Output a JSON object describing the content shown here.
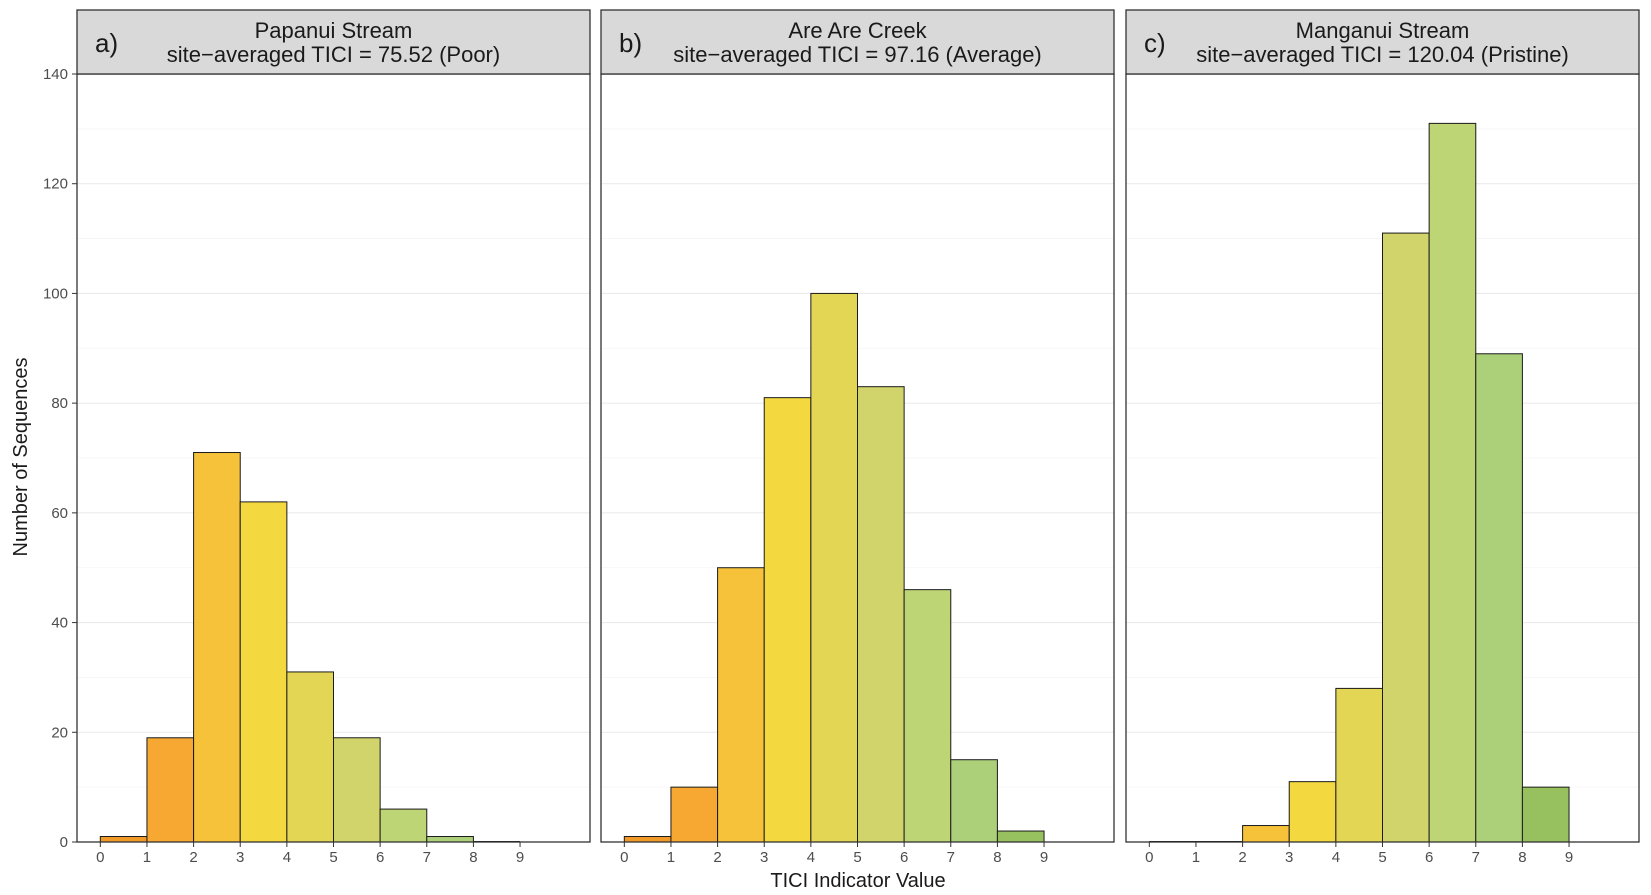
{
  "chart_data": {
    "type": "bar",
    "xlabel": "TICI Indicator Value",
    "ylabel": "Number of Sequences",
    "xlim": [
      -0.5,
      10.5
    ],
    "ylim": [
      0,
      140
    ],
    "x_ticks": [
      "0",
      "1",
      "2",
      "3",
      "4",
      "5",
      "6",
      "7",
      "8",
      "9"
    ],
    "y_ticks": [
      "0",
      "20",
      "40",
      "60",
      "80",
      "100",
      "120",
      "140"
    ],
    "bin_edges": [
      0,
      1,
      2,
      3,
      4,
      5,
      6,
      7,
      8,
      9
    ],
    "bin_colors": [
      "#f19a28",
      "#f6a833",
      "#f5c23a",
      "#f3d83f",
      "#e3d654",
      "#d1d46b",
      "#bed576",
      "#acd07a",
      "#97c15f",
      "#7ea94a"
    ],
    "panels": [
      {
        "letter": "a)",
        "site": "Papanui Stream",
        "subtitle": "site−averaged TICI = 75.52 (Poor)",
        "values": [
          1,
          19,
          71,
          62,
          31,
          19,
          6,
          1,
          0
        ]
      },
      {
        "letter": "b)",
        "site": "Are Are Creek",
        "subtitle": "site−averaged TICI = 97.16 (Average)",
        "values": [
          1,
          10,
          50,
          81,
          100,
          83,
          46,
          15,
          2
        ]
      },
      {
        "letter": "c)",
        "site": "Manganui Stream",
        "subtitle": "site−averaged TICI = 120.04 (Pristine)",
        "values": [
          0,
          0,
          3,
          11,
          28,
          111,
          131,
          89,
          10
        ]
      }
    ]
  }
}
